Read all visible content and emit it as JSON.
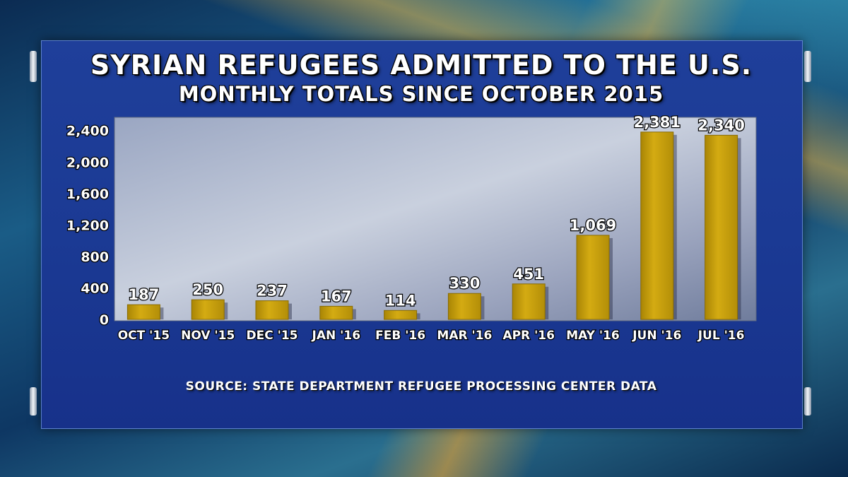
{
  "chart_data": {
    "type": "bar",
    "title": "SYRIAN REFUGEES ADMITTED TO THE U.S.",
    "subtitle": "MONTHLY TOTALS SINCE OCTOBER 2015",
    "categories": [
      "OCT '15",
      "NOV '15",
      "DEC '15",
      "JAN '16",
      "FEB '16",
      "MAR '16",
      "APR '16",
      "MAY '16",
      "JUN '16",
      "JUL '16"
    ],
    "values": [
      187,
      250,
      237,
      167,
      114,
      330,
      451,
      1069,
      2381,
      2340
    ],
    "value_labels": [
      "187",
      "250",
      "237",
      "167",
      "114",
      "330",
      "451",
      "1,069",
      "2,381",
      "2,340"
    ],
    "y_ticks": [
      "0",
      "400",
      "800",
      "1,200",
      "1,600",
      "2,000",
      "2,400"
    ],
    "y_tick_values": [
      0,
      400,
      800,
      1200,
      1600,
      2000,
      2400
    ],
    "ylim": [
      0,
      2550
    ],
    "xlabel": "",
    "ylabel": "",
    "bar_color": "#c9a10e",
    "source": "SOURCE: STATE DEPARTMENT REFUGEE PROCESSING CENTER DATA"
  }
}
